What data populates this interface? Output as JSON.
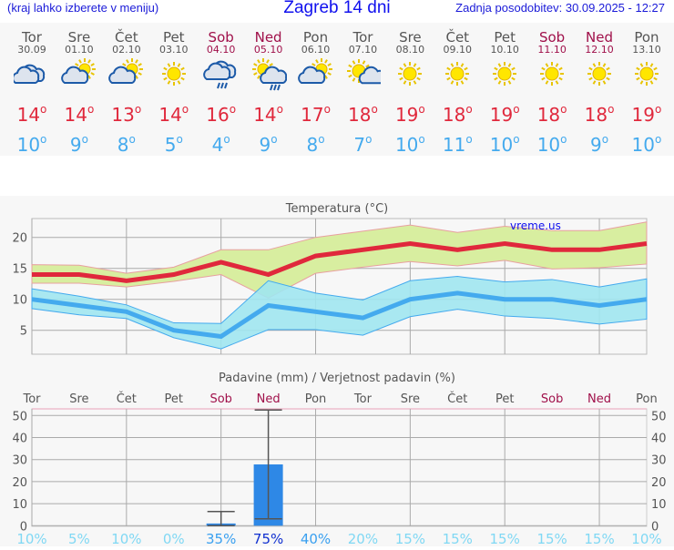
{
  "header": {
    "hint": "(kraj lahko izberete v meniju)",
    "title": "Zagreb 14 dni",
    "updated": "Zadnja posodobitev: 30.09.2025 - 12:27"
  },
  "days": [
    {
      "day": "Tor",
      "date": "30.09",
      "icon": "cloudy",
      "hi": "14",
      "lo": "10",
      "weekend": false,
      "rain_pct": "10%"
    },
    {
      "day": "Sre",
      "date": "01.10",
      "icon": "partly-cloudy",
      "hi": "14",
      "lo": "9",
      "weekend": false,
      "rain_pct": "5%"
    },
    {
      "day": "Čet",
      "date": "02.10",
      "icon": "partly-cloudy",
      "hi": "13",
      "lo": "8",
      "weekend": false,
      "rain_pct": "10%"
    },
    {
      "day": "Pet",
      "date": "03.10",
      "icon": "sunny",
      "hi": "14",
      "lo": "5",
      "weekend": false,
      "rain_pct": "0%"
    },
    {
      "day": "Sob",
      "date": "04.10",
      "icon": "cloudy-rain",
      "hi": "16",
      "lo": "4",
      "weekend": true,
      "rain_pct": "35%"
    },
    {
      "day": "Ned",
      "date": "05.10",
      "icon": "sun-cloud-rain",
      "hi": "14",
      "lo": "9",
      "weekend": true,
      "rain_pct": "75%"
    },
    {
      "day": "Pon",
      "date": "06.10",
      "icon": "partly-cloudy",
      "hi": "17",
      "lo": "8",
      "weekend": false,
      "rain_pct": "40%"
    },
    {
      "day": "Tor",
      "date": "07.10",
      "icon": "mostly-sunny",
      "hi": "18",
      "lo": "7",
      "weekend": false,
      "rain_pct": "20%"
    },
    {
      "day": "Sre",
      "date": "08.10",
      "icon": "sunny",
      "hi": "19",
      "lo": "10",
      "weekend": false,
      "rain_pct": "15%"
    },
    {
      "day": "Čet",
      "date": "09.10",
      "icon": "sunny",
      "hi": "18",
      "lo": "11",
      "weekend": false,
      "rain_pct": "15%"
    },
    {
      "day": "Pet",
      "date": "10.10",
      "icon": "sunny",
      "hi": "19",
      "lo": "10",
      "weekend": false,
      "rain_pct": "15%"
    },
    {
      "day": "Sob",
      "date": "11.10",
      "icon": "sunny",
      "hi": "18",
      "lo": "10",
      "weekend": true,
      "rain_pct": "15%"
    },
    {
      "day": "Ned",
      "date": "12.10",
      "icon": "sunny",
      "hi": "18",
      "lo": "9",
      "weekend": true,
      "rain_pct": "15%"
    },
    {
      "day": "Pon",
      "date": "13.10",
      "icon": "sunny",
      "hi": "19",
      "lo": "10",
      "weekend": false,
      "rain_pct": "10%"
    }
  ],
  "chart_data": [
    {
      "type": "line",
      "title": "Temperatura (°C)",
      "watermark": "vreme.us",
      "ylim": [
        1,
        23
      ],
      "yticks": [
        5,
        10,
        15,
        20
      ],
      "series": [
        {
          "values": [
            14,
            14,
            13,
            14,
            16,
            14,
            17,
            18,
            19,
            18,
            19,
            18,
            18,
            19
          ],
          "color": "#e0283c"
        },
        {
          "values": [
            10,
            9,
            8,
            5,
            4,
            9,
            8,
            7,
            10,
            11,
            10,
            10,
            9,
            10
          ],
          "color": "#44aaee"
        }
      ],
      "bands": [
        {
          "upper": [
            15.6,
            15.5,
            14.2,
            15.2,
            18,
            18,
            20,
            21,
            22,
            20.8,
            21.8,
            21.1,
            21.1,
            22.5
          ],
          "lower": [
            12.6,
            12.6,
            12,
            12.9,
            14,
            10.2,
            14.2,
            15.2,
            16.1,
            15.4,
            16.3,
            14.9,
            15.1,
            15.7
          ],
          "color": "#d8eea0"
        },
        {
          "upper": [
            11.7,
            10.5,
            9.1,
            6.2,
            6.1,
            13,
            11,
            9.9,
            13,
            13.7,
            12.8,
            13.2,
            12,
            13.3
          ],
          "lower": [
            8.5,
            7.5,
            6.9,
            3.8,
            2,
            5.1,
            5.1,
            4.2,
            7.2,
            8.4,
            7.3,
            6.9,
            6,
            6.8
          ],
          "color": "#a0e6f0"
        }
      ]
    },
    {
      "type": "bar",
      "title": "Padavine (mm) / Verjetnost padavin (%)",
      "ylim": [
        0,
        53
      ],
      "yticks": [
        0,
        10,
        20,
        30,
        40,
        50
      ],
      "values": [
        0,
        0,
        0,
        0,
        1,
        27.8,
        0,
        0,
        0,
        0,
        0,
        0,
        0,
        0
      ],
      "error_low": [
        null,
        null,
        null,
        null,
        0,
        3.1,
        null,
        null,
        null,
        null,
        null,
        null,
        null,
        null
      ],
      "error_high": [
        null,
        null,
        null,
        null,
        6.4,
        52.5,
        null,
        null,
        null,
        null,
        null,
        null,
        null,
        null
      ]
    }
  ]
}
